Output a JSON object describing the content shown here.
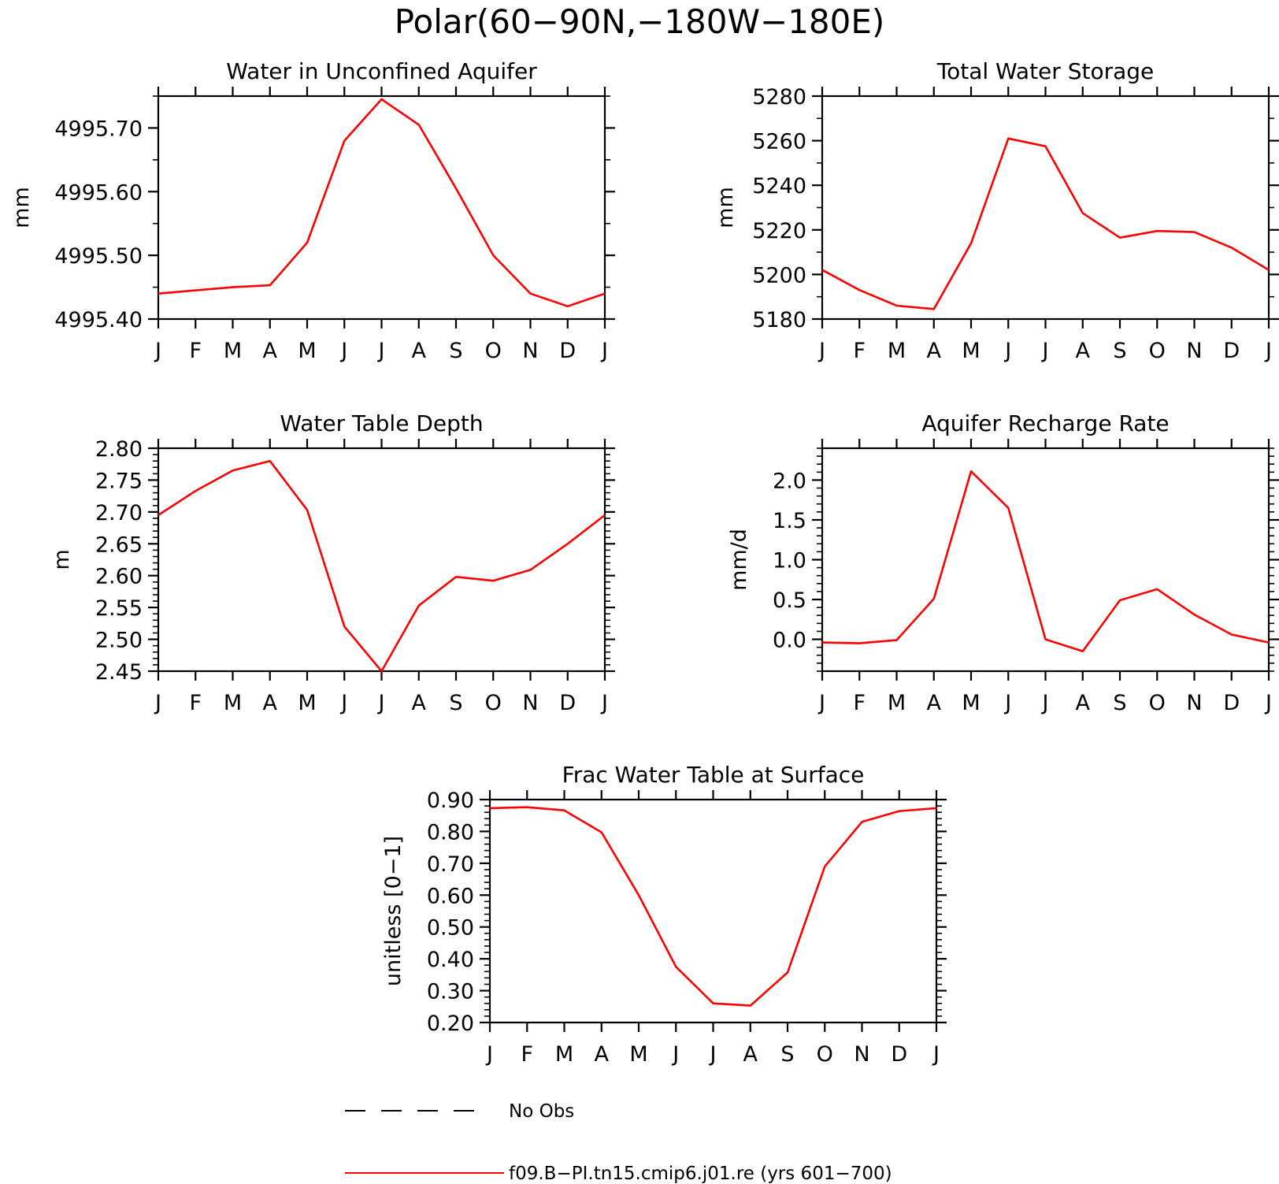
{
  "figure": {
    "title": "Polar(60−90N,−180W−180E)",
    "line_color": "#ff0000",
    "legend": [
      {
        "label": "No Obs",
        "style": "dashed",
        "color": "#000000"
      },
      {
        "label": "f09.B−PI.tn15.cmip6.j01.re (yrs 601−700)",
        "style": "solid",
        "color": "#ff0000"
      }
    ]
  },
  "chart_data": [
    {
      "type": "line",
      "title": "Water in Unconfined Aquifer",
      "ylabel": "mm",
      "categories": [
        "J",
        "F",
        "M",
        "A",
        "M",
        "J",
        "J",
        "A",
        "S",
        "O",
        "N",
        "D",
        "J"
      ],
      "ylim": [
        4995.4,
        4995.75
      ],
      "yticks": [
        "4995.40",
        "4995.50",
        "4995.60",
        "4995.70"
      ],
      "yticks_values": [
        4995.4,
        4995.5,
        4995.6,
        4995.7
      ],
      "minor_step": 0.05,
      "series": [
        {
          "values": [
            4995.44,
            4995.445,
            4995.45,
            4995.453,
            4995.52,
            4995.68,
            4995.745,
            4995.705,
            4995.605,
            4995.5,
            4995.44,
            4995.42,
            4995.44
          ]
        }
      ]
    },
    {
      "type": "line",
      "title": "Total Water Storage",
      "ylabel": "mm",
      "categories": [
        "J",
        "F",
        "M",
        "A",
        "M",
        "J",
        "J",
        "A",
        "S",
        "O",
        "N",
        "D",
        "J"
      ],
      "ylim": [
        5180,
        5280
      ],
      "yticks": [
        "5180",
        "5200",
        "5220",
        "5240",
        "5260",
        "5280"
      ],
      "yticks_values": [
        5180,
        5200,
        5220,
        5240,
        5260,
        5280
      ],
      "minor_step": 10,
      "series": [
        {
          "values": [
            5202,
            5193,
            5186,
            5184.5,
            5214,
            5261,
            5257.5,
            5227.5,
            5216.5,
            5219.5,
            5219,
            5212,
            5202
          ]
        }
      ]
    },
    {
      "type": "line",
      "title": "Water Table Depth",
      "ylabel": "m",
      "categories": [
        "J",
        "F",
        "M",
        "A",
        "M",
        "J",
        "J",
        "A",
        "S",
        "O",
        "N",
        "D",
        "J"
      ],
      "ylim": [
        2.45,
        2.8
      ],
      "yticks": [
        "2.45",
        "2.50",
        "2.55",
        "2.60",
        "2.65",
        "2.70",
        "2.75",
        "2.80"
      ],
      "yticks_values": [
        2.45,
        2.5,
        2.55,
        2.6,
        2.65,
        2.7,
        2.75,
        2.8
      ],
      "minor_step": 0.01,
      "series": [
        {
          "values": [
            2.695,
            2.733,
            2.765,
            2.78,
            2.703,
            2.52,
            2.45,
            2.553,
            2.598,
            2.592,
            2.609,
            2.65,
            2.695
          ]
        }
      ]
    },
    {
      "type": "line",
      "title": "Aquifer Recharge Rate",
      "ylabel": "mm/d",
      "categories": [
        "J",
        "F",
        "M",
        "A",
        "M",
        "J",
        "J",
        "A",
        "S",
        "O",
        "N",
        "D",
        "J"
      ],
      "ylim": [
        -0.4,
        2.4
      ],
      "yticks": [
        "0.0",
        "0.5",
        "1.0",
        "1.5",
        "2.0"
      ],
      "yticks_values": [
        0.0,
        0.5,
        1.0,
        1.5,
        2.0
      ],
      "minor_step": 0.1,
      "series": [
        {
          "values": [
            -0.04,
            -0.05,
            -0.01,
            0.51,
            2.11,
            1.65,
            0.0,
            -0.15,
            0.49,
            0.63,
            0.31,
            0.06,
            -0.04
          ]
        }
      ]
    },
    {
      "type": "line",
      "title": "Frac Water Table at Surface",
      "ylabel": "unitless [0−1]",
      "categories": [
        "J",
        "F",
        "M",
        "A",
        "M",
        "J",
        "J",
        "A",
        "S",
        "O",
        "N",
        "D",
        "J"
      ],
      "ylim": [
        0.2,
        0.9
      ],
      "yticks": [
        "0.20",
        "0.30",
        "0.40",
        "0.50",
        "0.60",
        "0.70",
        "0.80",
        "0.90"
      ],
      "yticks_values": [
        0.2,
        0.3,
        0.4,
        0.5,
        0.6,
        0.7,
        0.8,
        0.9
      ],
      "minor_step": 0.02,
      "series": [
        {
          "values": [
            0.873,
            0.876,
            0.866,
            0.797,
            0.6,
            0.375,
            0.26,
            0.253,
            0.357,
            0.69,
            0.83,
            0.864,
            0.873
          ]
        }
      ]
    }
  ]
}
